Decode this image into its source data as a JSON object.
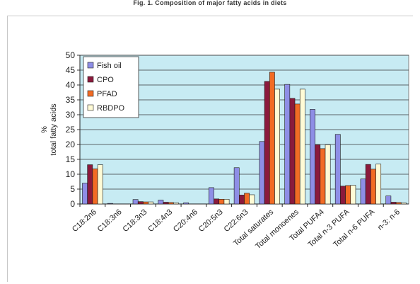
{
  "caption": "Fig. 1. Composition of major fatty acids in diets",
  "chart_data": {
    "type": "bar",
    "ylabel": "%\ntotal fatty acids",
    "ylim": [
      0,
      50
    ],
    "yticks": [
      0,
      5,
      10,
      15,
      20,
      25,
      30,
      35,
      40,
      45,
      50
    ],
    "grid": true,
    "legend_position": "top-left",
    "plot_background": "#c7ebf3",
    "categories": [
      "C18:2n6",
      "C18:3n6",
      "C18:3n3",
      "C18:4n3",
      "C20:4n6",
      "C20:5n3",
      "C22:6n3",
      "Total saturates",
      "Total monoenes",
      "Total PUFA4",
      "Total n-3 PUFA",
      "Total n-6 PUFA",
      "n-3: n-6"
    ],
    "series": [
      {
        "name": "Fish oil",
        "color": "#8e8ee6",
        "values": [
          7,
          0.2,
          1.5,
          1.3,
          0.4,
          5.5,
          12.2,
          21,
          40.2,
          31.8,
          23.4,
          8.4,
          2.7
        ]
      },
      {
        "name": "CPO",
        "color": "#8b1a3c",
        "values": [
          13.2,
          0,
          0.8,
          0.6,
          0,
          1.7,
          3,
          41.2,
          35.5,
          19.9,
          6,
          13.3,
          0.6
        ]
      },
      {
        "name": "PFAD",
        "color": "#f26b24",
        "values": [
          11.8,
          0,
          0.7,
          0.5,
          0,
          1.6,
          3.6,
          44.3,
          33.6,
          18.6,
          6.2,
          11.7,
          0.5
        ]
      },
      {
        "name": "RBDPO",
        "color": "#fffbd6",
        "values": [
          13.2,
          0,
          0.7,
          0.4,
          0,
          1.6,
          3.1,
          38.6,
          38.6,
          19.9,
          6.3,
          13.4,
          0.4
        ]
      }
    ]
  }
}
